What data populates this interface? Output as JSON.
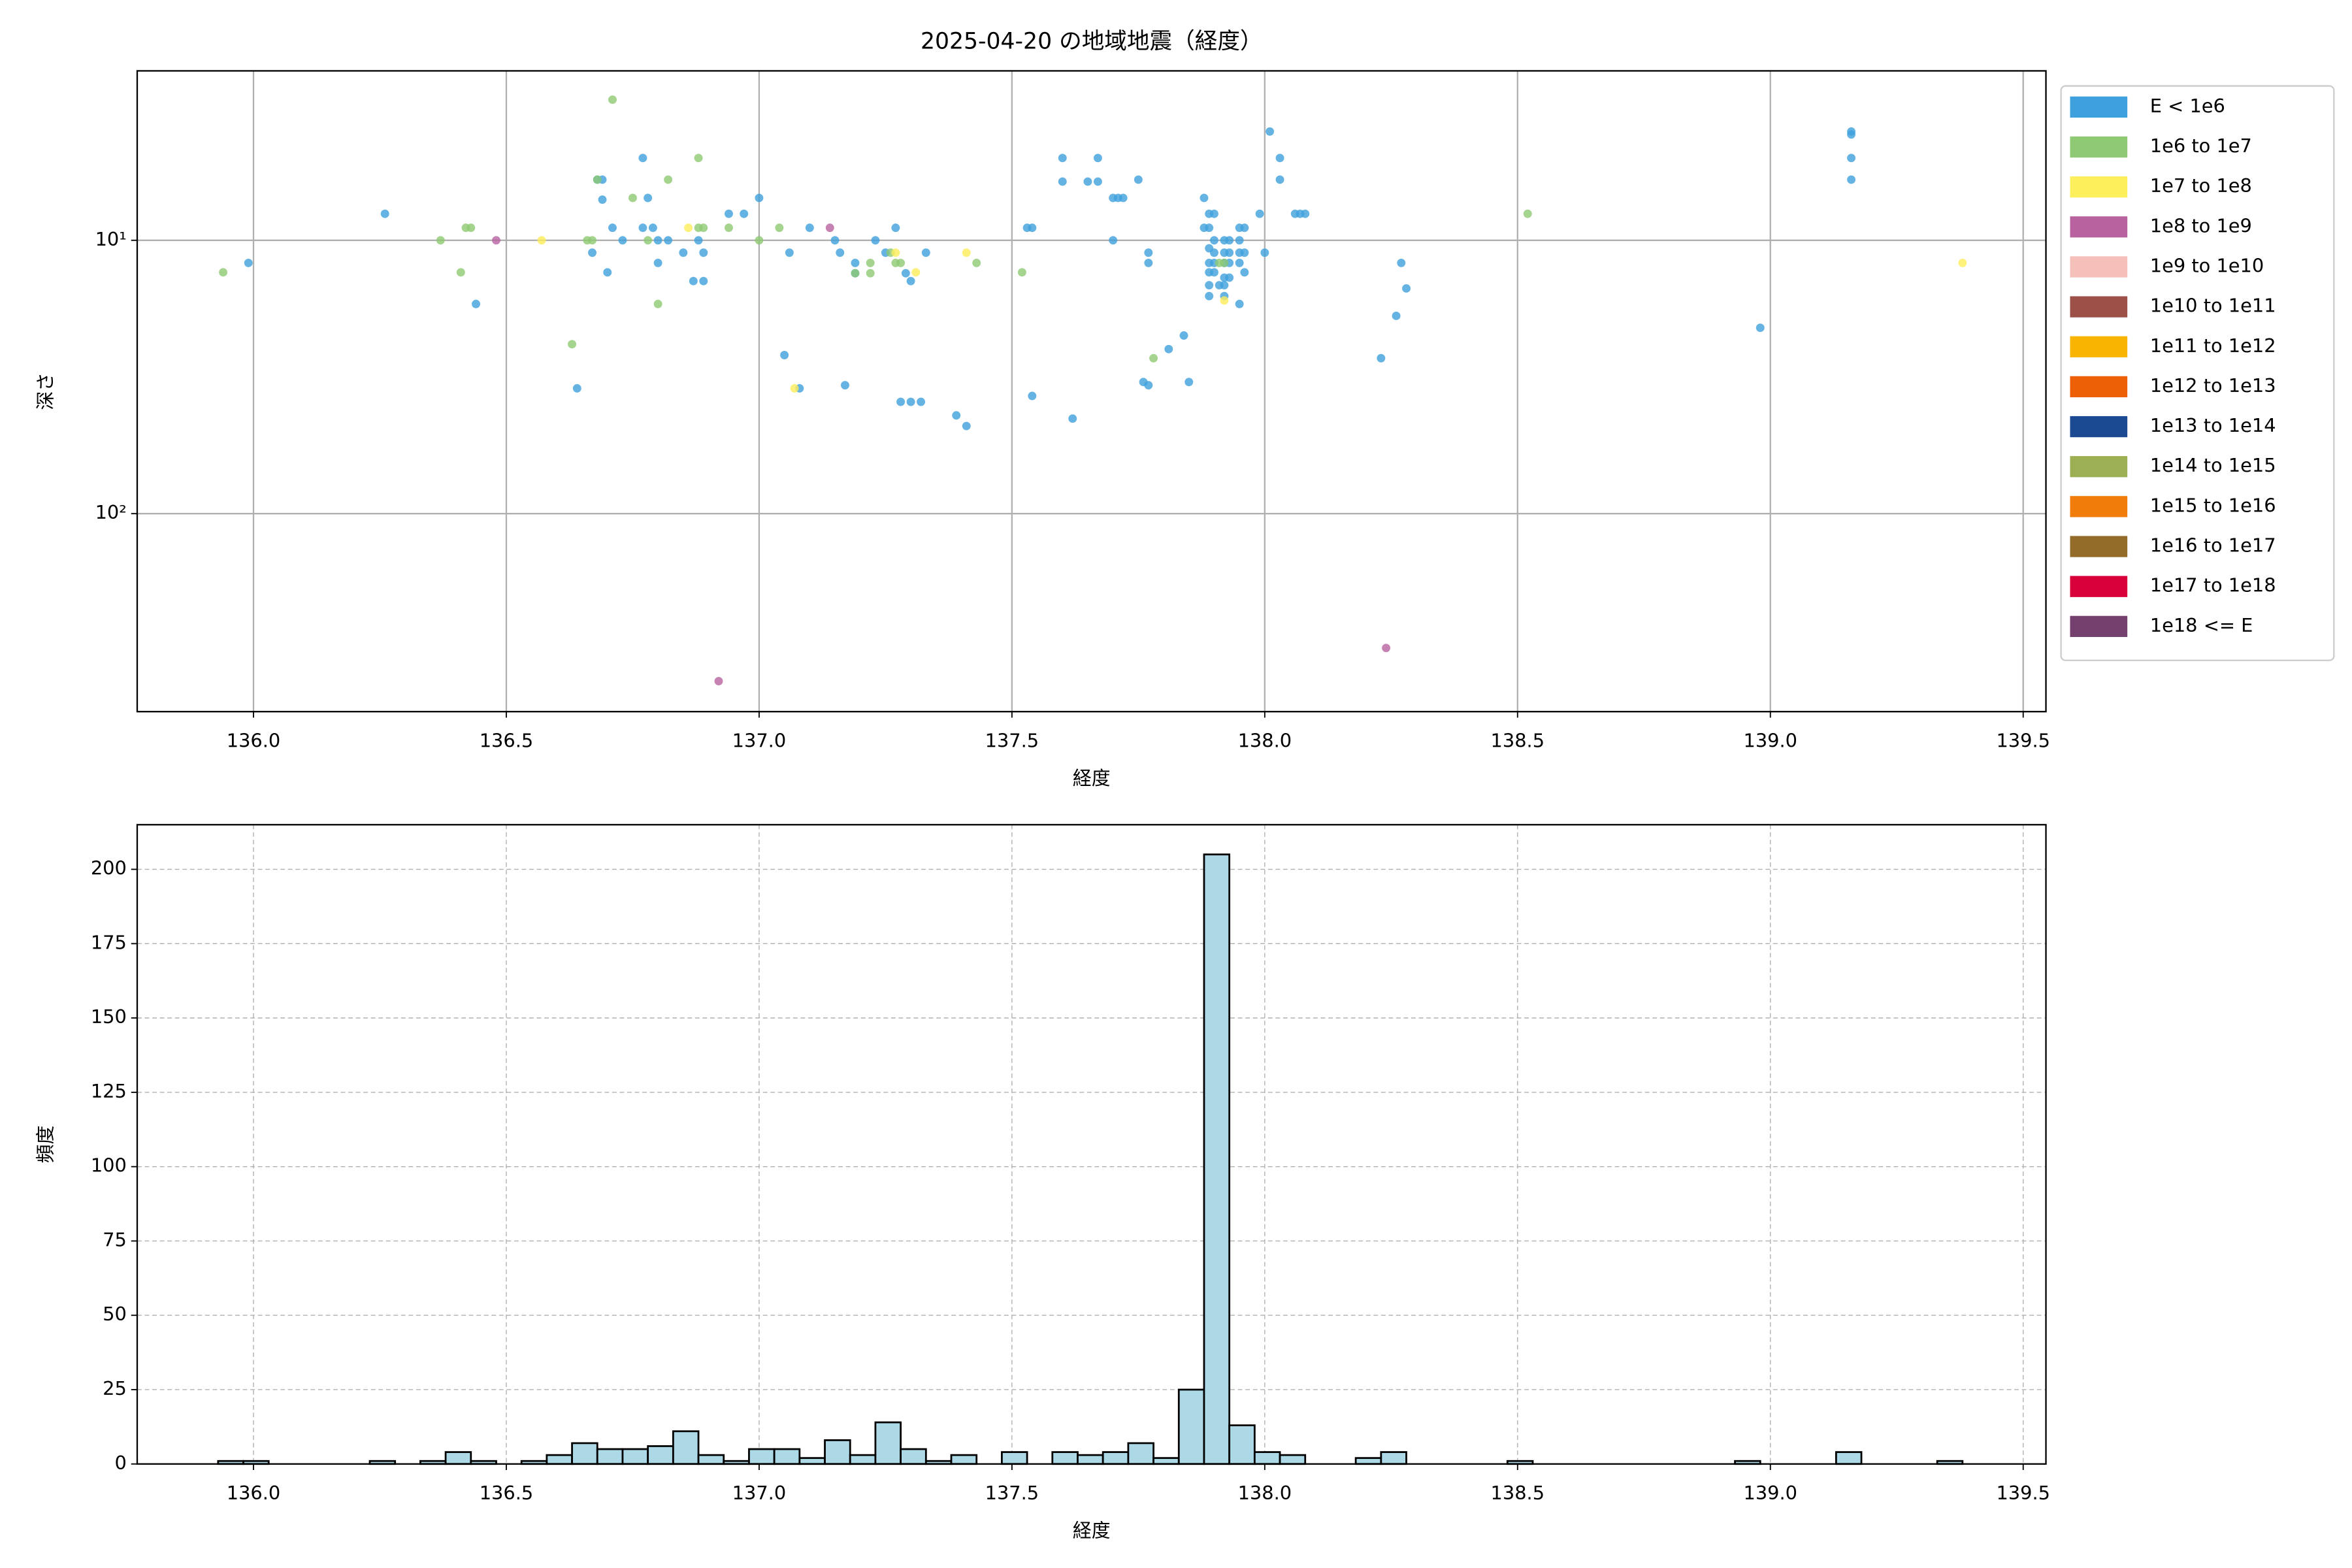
{
  "chart_data": [
    {
      "type": "scatter",
      "title": "2025-04-20 の地域地震（経度）",
      "xlabel": "経度",
      "ylabel": "深さ",
      "xlim": [
        135.77,
        139.545
      ],
      "xticks": [
        {
          "value": 136,
          "label": "136.0"
        },
        136.5,
        {
          "value": 137,
          "label": "137.0"
        },
        137.5,
        {
          "value": 138,
          "label": "138.0"
        },
        138.5,
        {
          "value": 139,
          "label": "139.0"
        },
        139.5
      ],
      "ylim": [
        530,
        2.4
      ],
      "ylog": true,
      "yticks": [
        {
          "value": 10,
          "label": "10¹"
        },
        {
          "value": 100,
          "label": "10²"
        }
      ],
      "grid": true,
      "grid_style": "solid",
      "legend": "right",
      "series": [
        {
          "name": "E < 1e6",
          "color": "#3ea0dc",
          "x": [
            135.99,
            136.26,
            136.44,
            136.64,
            136.67,
            136.69,
            136.69,
            136.68,
            136.7,
            136.71,
            136.73,
            136.77,
            136.77,
            136.78,
            136.79,
            136.8,
            136.8,
            136.82,
            136.85,
            136.87,
            136.88,
            136.89,
            136.89,
            136.94,
            136.97,
            137.0,
            137.05,
            137.06,
            137.08,
            137.1,
            137.15,
            137.16,
            137.17,
            137.19,
            137.19,
            137.23,
            137.25,
            137.27,
            137.28,
            137.29,
            137.3,
            137.3,
            137.32,
            137.33,
            137.39,
            137.41,
            137.53,
            137.54,
            137.54,
            137.6,
            137.6,
            137.62,
            137.65,
            137.67,
            137.67,
            137.7,
            137.71,
            137.72,
            137.7,
            137.75,
            137.77,
            137.77,
            137.81,
            137.84,
            137.85,
            137.76,
            137.77,
            137.88,
            137.89,
            137.9,
            137.88,
            137.89,
            137.9,
            137.92,
            137.93,
            137.95,
            137.89,
            137.9,
            137.92,
            137.93,
            137.95,
            137.96,
            137.89,
            137.9,
            137.92,
            137.93,
            137.95,
            137.96,
            137.89,
            137.9,
            137.92,
            137.93,
            137.89,
            137.91,
            137.92,
            137.89,
            137.92,
            137.95,
            137.95,
            137.96,
            137.99,
            138.01,
            138.03,
            138.03,
            138.06,
            138.07,
            138.08,
            138.0,
            138.23,
            138.26,
            138.27,
            138.28,
            138.98,
            139.16,
            139.16,
            139.16,
            139.16
          ],
          "values": [
            12.1,
            8,
            17.1,
            34.8,
            11.1,
            7.1,
            6,
            6,
            13.1,
            9,
            10,
            5,
            9,
            7,
            9,
            10,
            12.1,
            10,
            11.1,
            14.1,
            10,
            14.1,
            11.1,
            8,
            8,
            7,
            26.3,
            11.1,
            34.8,
            9,
            10,
            11.1,
            33.9,
            12.1,
            13.2,
            10,
            11.1,
            9,
            39,
            13.2,
            14.1,
            39,
            39,
            11.1,
            43.7,
            47.8,
            9,
            9,
            37.1,
            5,
            6.1,
            44.9,
            6.1,
            6.1,
            5,
            7,
            7,
            7,
            10,
            6,
            12.1,
            11.1,
            25,
            22.3,
            33,
            33,
            33.9,
            7,
            8,
            8,
            9,
            9,
            10,
            10,
            10,
            10,
            10.7,
            11.1,
            11.1,
            11.1,
            11.1,
            11.1,
            12.1,
            12.1,
            12.1,
            12.1,
            12.1,
            13.1,
            13.1,
            13.1,
            13.7,
            13.7,
            14.6,
            14.6,
            14.6,
            16,
            16,
            17.1,
            9,
            9,
            8,
            4,
            5,
            6,
            8,
            8,
            8,
            11.1,
            27,
            18.9,
            12.1,
            15,
            20.9,
            4,
            5,
            6,
            4.1
          ]
        },
        {
          "name": "1e6 to 1e7",
          "color": "#8fc973",
          "x": [
            135.94,
            136.37,
            136.41,
            136.42,
            136.43,
            136.63,
            136.66,
            136.67,
            136.68,
            136.71,
            136.75,
            136.78,
            136.8,
            136.82,
            136.88,
            136.88,
            136.89,
            136.94,
            137.0,
            137.04,
            137.19,
            137.22,
            137.22,
            137.26,
            137.27,
            137.28,
            137.43,
            137.52,
            137.78,
            137.91,
            137.92,
            138.52
          ],
          "values": [
            13.1,
            10,
            13.1,
            9,
            9,
            24,
            10,
            10,
            6,
            3.06,
            7,
            10,
            17.1,
            6,
            5,
            9,
            9,
            9,
            10,
            9,
            13.2,
            13.2,
            12.1,
            11.1,
            12.1,
            12.1,
            12.1,
            13.1,
            27,
            12.1,
            12.1,
            8
          ]
        },
        {
          "name": "1e7 to 1e8",
          "color": "#fdee5b",
          "x": [
            136.57,
            136.86,
            137.07,
            137.27,
            137.31,
            137.41,
            137.92,
            139.38
          ],
          "values": [
            10,
            9,
            34.8,
            11.1,
            13.1,
            11.1,
            16.6,
            12.1
          ]
        },
        {
          "name": "1e8 to 1e9",
          "color": "#b8639f",
          "x": [
            136.48,
            136.92,
            137.14,
            138.24
          ],
          "values": [
            10,
            410,
            9,
            310
          ]
        },
        {
          "name": "1e9 to 1e10",
          "color": "#f5bfba",
          "x": [],
          "values": []
        },
        {
          "name": "1e10 to 1e11",
          "color": "#9c5048",
          "x": [],
          "values": []
        },
        {
          "name": "1e11 to 1e12",
          "color": "#f8b400",
          "x": [],
          "values": []
        },
        {
          "name": "1e12 to 1e13",
          "color": "#ee6005",
          "x": [],
          "values": []
        },
        {
          "name": "1e13 to 1e14",
          "color": "#1b4a92",
          "x": [],
          "values": []
        },
        {
          "name": "1e14 to 1e15",
          "color": "#9caf52",
          "x": [],
          "values": []
        },
        {
          "name": "1e15 to 1e16",
          "color": "#f07c0a",
          "x": [],
          "values": []
        },
        {
          "name": "1e16 to 1e17",
          "color": "#946c2a",
          "x": [],
          "values": []
        },
        {
          "name": "1e17 to 1e18",
          "color": "#d9003a",
          "x": [],
          "values": []
        },
        {
          "name": "1e18 <= E",
          "color": "#74416e",
          "x": [],
          "values": []
        }
      ]
    },
    {
      "type": "histogram",
      "xlabel": "経度",
      "ylabel": "頻度",
      "xlim": [
        135.77,
        139.545
      ],
      "xticks": [
        {
          "value": 136,
          "label": "136.0"
        },
        136.5,
        {
          "value": 137,
          "label": "137.0"
        },
        137.5,
        {
          "value": 138,
          "label": "138.0"
        },
        138.5,
        {
          "value": 139,
          "label": "139.0"
        },
        139.5
      ],
      "ylim": [
        0,
        215
      ],
      "yticks": [
        0,
        25,
        50,
        75,
        100,
        125,
        150,
        175,
        200
      ],
      "grid": true,
      "grid_style": "dashed",
      "color": "#add8e6",
      "edgecolor": "#000000",
      "bins": [
        135.93,
        135.98,
        136.03,
        136.08,
        136.13,
        136.18,
        136.23,
        136.28,
        136.33,
        136.38,
        136.43,
        136.48,
        136.53,
        136.58,
        136.63,
        136.68,
        136.73,
        136.78,
        136.83,
        136.88,
        136.93,
        136.98,
        137.03,
        137.08,
        137.13,
        137.18,
        137.23,
        137.28,
        137.33,
        137.38,
        137.43,
        137.48,
        137.53,
        137.58,
        137.63,
        137.68,
        137.73,
        137.78,
        137.83,
        137.88,
        137.93,
        137.98,
        138.03,
        138.08,
        138.13,
        138.18,
        138.23,
        138.28,
        138.33,
        138.38,
        138.43,
        138.48,
        138.53,
        138.58,
        138.63,
        138.68,
        138.73,
        138.78,
        138.83,
        138.88,
        138.93,
        138.98,
        139.03,
        139.08,
        139.13,
        139.18,
        139.23,
        139.28,
        139.33,
        139.38,
        139.43
      ],
      "counts": [
        1,
        1,
        0,
        0,
        0,
        0,
        1,
        0,
        1,
        4,
        1,
        0,
        1,
        3,
        7,
        5,
        5,
        6,
        11,
        3,
        1,
        5,
        5,
        2,
        8,
        3,
        14,
        5,
        1,
        3,
        0,
        4,
        0,
        4,
        3,
        4,
        7,
        2,
        25,
        205,
        13,
        4,
        3,
        0,
        0,
        2,
        4,
        0,
        0,
        0,
        0,
        1,
        0,
        0,
        0,
        0,
        0,
        0,
        0,
        0,
        1,
        0,
        0,
        0,
        4,
        0,
        0,
        0,
        1,
        0
      ]
    }
  ]
}
